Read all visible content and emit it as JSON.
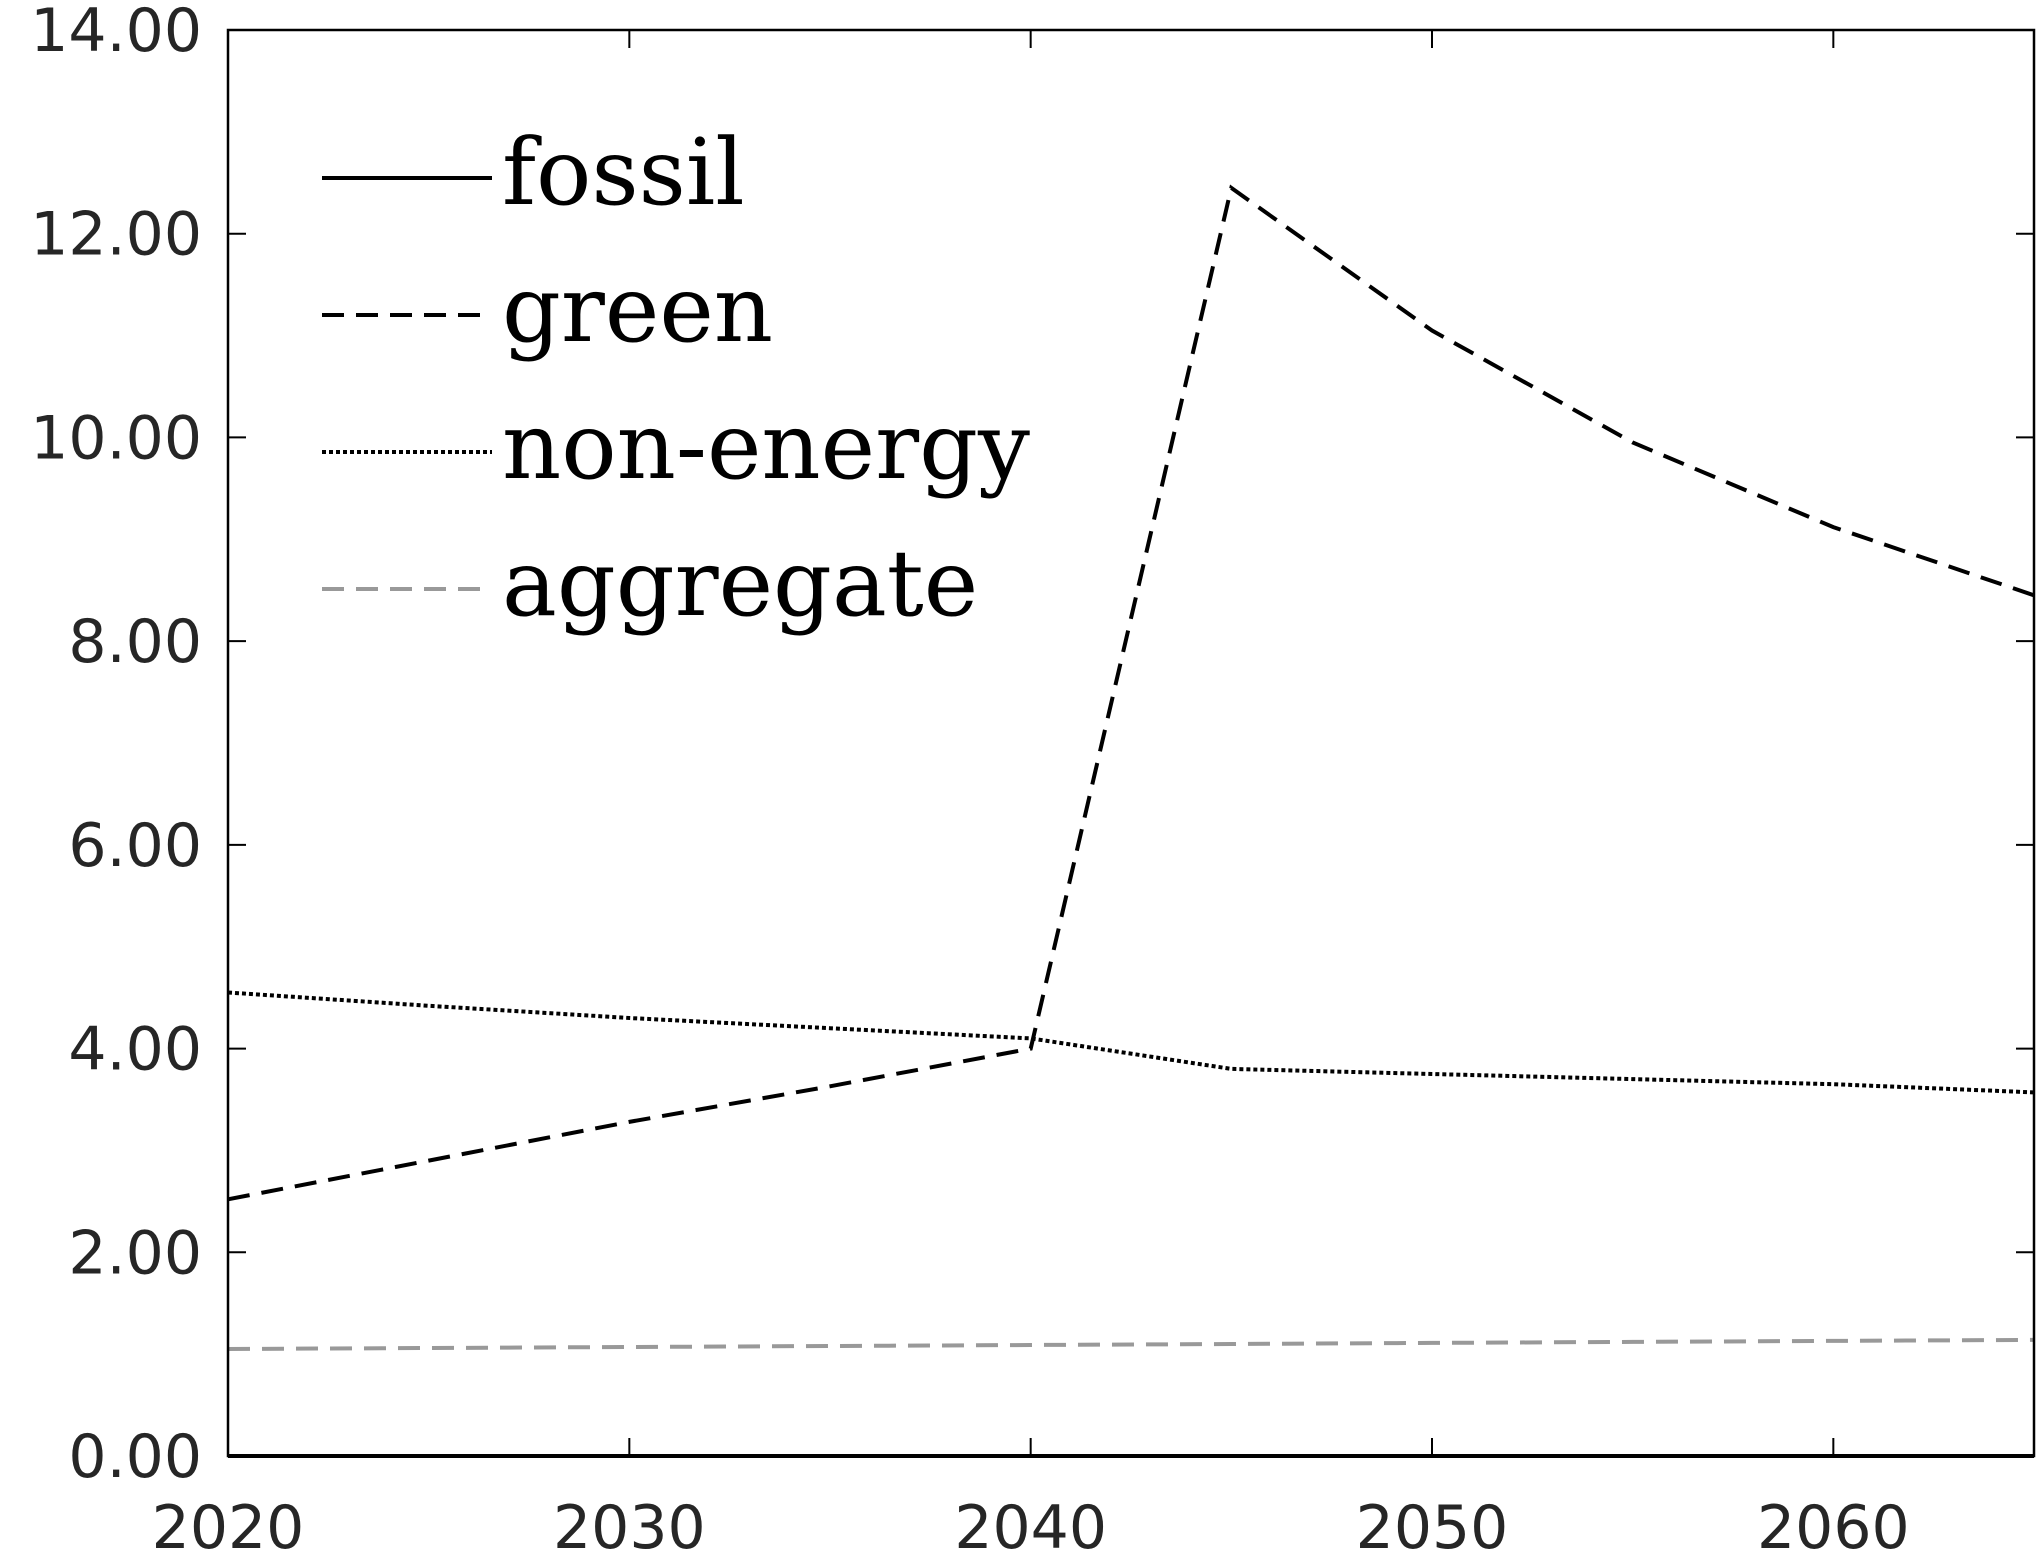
{
  "chart_data": {
    "type": "line",
    "title": "",
    "xlabel": "",
    "ylabel": "",
    "xlim": [
      2020,
      2065
    ],
    "ylim": [
      0,
      14
    ],
    "x_ticks": [
      2020,
      2030,
      2040,
      2050,
      2060
    ],
    "x_tick_labels": [
      "2020",
      "2030",
      "2040",
      "2050",
      "2060"
    ],
    "y_ticks": [
      0,
      2,
      4,
      6,
      8,
      10,
      12,
      14
    ],
    "y_tick_labels": [
      "0.00",
      "2.00",
      "4.00",
      "6.00",
      "8.00",
      "10.00",
      "12.00",
      "14.00"
    ],
    "grid": false,
    "legend_position": "top-left",
    "series": [
      {
        "name": "fossil",
        "style": "solid",
        "color": "#000000",
        "x": [],
        "values": []
      },
      {
        "name": "green",
        "style": "dashed",
        "color": "#000000",
        "x": [
          2020,
          2025,
          2030,
          2035,
          2040,
          2045,
          2050,
          2055,
          2060,
          2065
        ],
        "values": [
          2.52,
          2.9,
          3.28,
          3.63,
          4.0,
          12.45,
          11.05,
          9.95,
          9.12,
          8.45
        ]
      },
      {
        "name": "non-energy",
        "style": "dotted",
        "color": "#000000",
        "x": [
          2020,
          2025,
          2030,
          2035,
          2040,
          2045,
          2050,
          2055,
          2060,
          2065
        ],
        "values": [
          4.55,
          4.42,
          4.3,
          4.2,
          4.1,
          3.8,
          3.75,
          3.7,
          3.65,
          3.57
        ]
      },
      {
        "name": "aggregate",
        "style": "dashed",
        "color": "#999999",
        "x": [
          2020,
          2025,
          2030,
          2035,
          2040,
          2045,
          2050,
          2055,
          2060,
          2065
        ],
        "values": [
          1.05,
          1.06,
          1.07,
          1.08,
          1.09,
          1.1,
          1.11,
          1.12,
          1.13,
          1.14
        ]
      }
    ]
  }
}
